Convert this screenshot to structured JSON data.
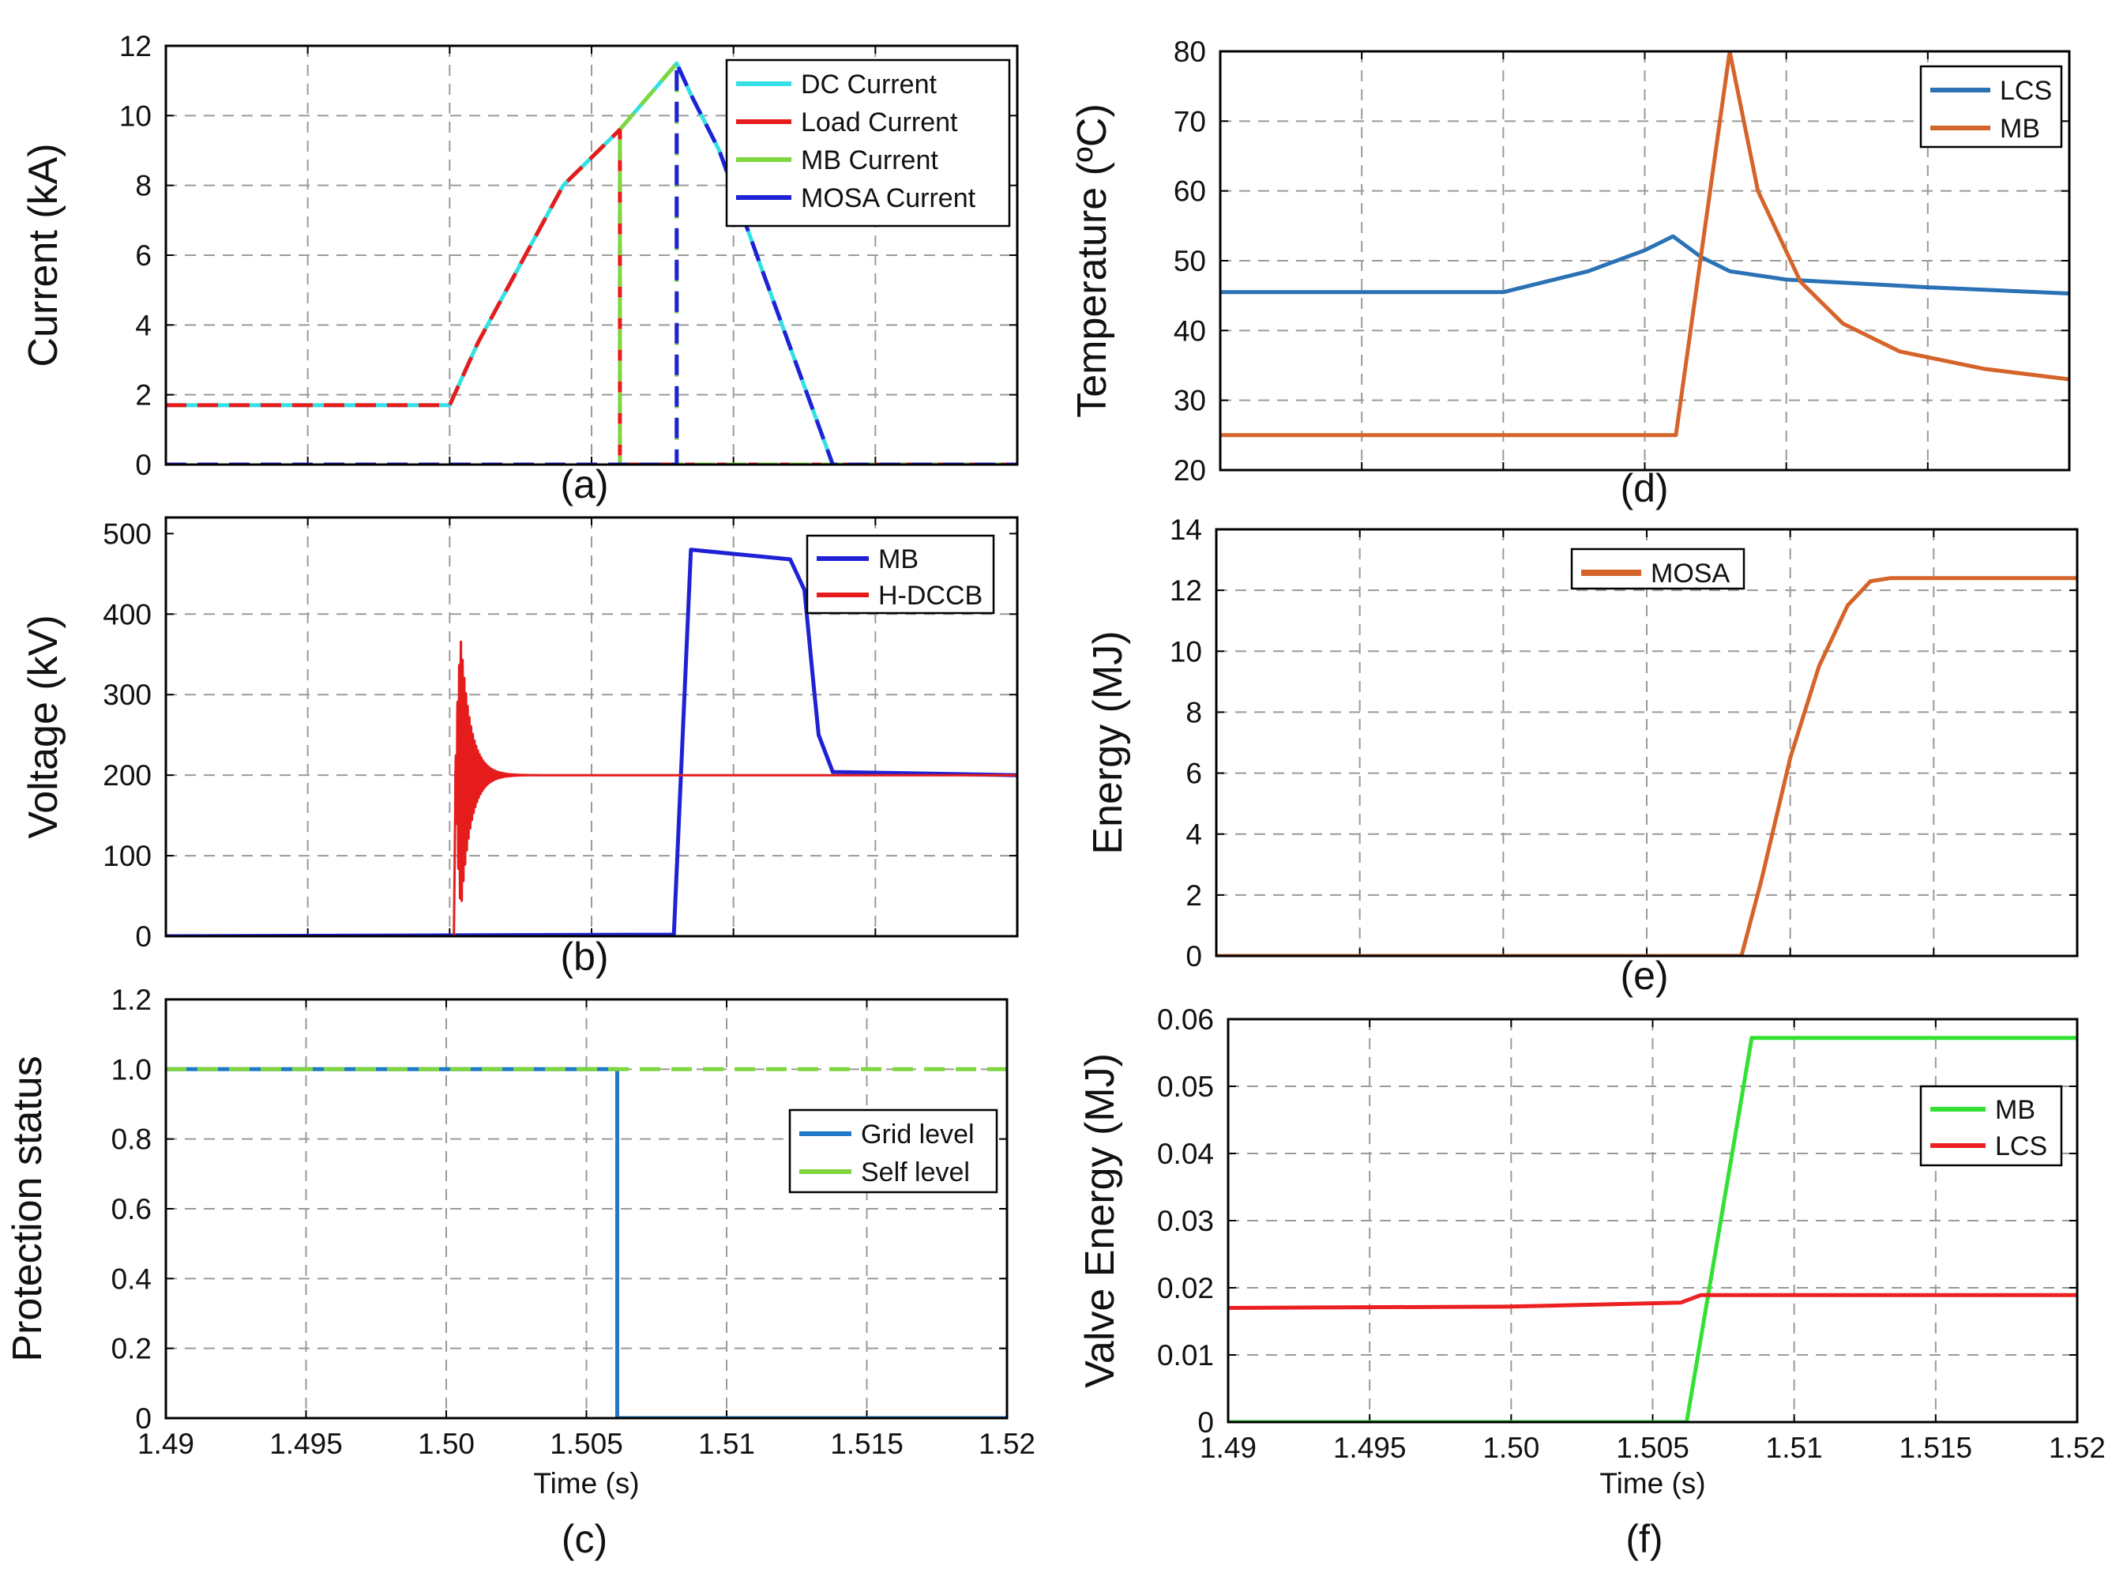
{
  "chart_data": [
    {
      "id": "a",
      "type": "line",
      "caption": "(a)",
      "ylabel": "Current (kA)",
      "xlabel": "",
      "xlim": [
        1.49,
        1.52
      ],
      "ylim": [
        0,
        12
      ],
      "xticks": [
        1.49,
        1.495,
        1.5,
        1.505,
        1.51,
        1.515,
        1.52
      ],
      "xtick_labels": [],
      "yticks": [
        0,
        2,
        4,
        6,
        8,
        10,
        12
      ],
      "ytick_labels": [
        "0",
        "2",
        "4",
        "6",
        "8",
        "10",
        "12"
      ],
      "grid": true,
      "legend_position": "top-right",
      "series": [
        {
          "name": "DC Current",
          "color": "#33e0e6",
          "style": "solid",
          "x": [
            1.49,
            1.5,
            1.501,
            1.504,
            1.506,
            1.508,
            1.5085,
            1.5095,
            1.511,
            1.5135,
            1.52
          ],
          "y": [
            1.7,
            1.7,
            3.5,
            8.0,
            9.6,
            11.5,
            10.6,
            9.0,
            5.6,
            0,
            0
          ]
        },
        {
          "name": "Load Current",
          "color": "#e61c1c",
          "style": "dashed",
          "x": [
            1.49,
            1.5,
            1.501,
            1.504,
            1.506,
            1.506,
            1.52
          ],
          "y": [
            1.7,
            1.7,
            3.5,
            8.0,
            9.6,
            0,
            0
          ]
        },
        {
          "name": "MB Current",
          "color": "#7fd63f",
          "style": "dashed",
          "x": [
            1.49,
            1.506,
            1.506,
            1.508,
            1.508,
            1.52
          ],
          "y": [
            0,
            0,
            9.6,
            11.5,
            0,
            0
          ]
        },
        {
          "name": "MOSA Current",
          "color": "#1f22d4",
          "style": "dashed",
          "x": [
            1.49,
            1.508,
            1.508,
            1.5085,
            1.5095,
            1.511,
            1.5135,
            1.52
          ],
          "y": [
            0,
            0,
            11.5,
            10.6,
            9.0,
            5.6,
            0,
            0
          ]
        }
      ]
    },
    {
      "id": "b",
      "type": "line",
      "caption": "(b)",
      "ylabel": "Voltage (kV)",
      "xlabel": "",
      "xlim": [
        1.49,
        1.52
      ],
      "ylim": [
        0,
        520
      ],
      "xticks": [
        1.49,
        1.495,
        1.5,
        1.505,
        1.51,
        1.515,
        1.52
      ],
      "xtick_labels": [],
      "yticks": [
        0,
        100,
        200,
        300,
        400,
        500
      ],
      "ytick_labels": [
        "0",
        "100",
        "200",
        "300",
        "400",
        "500"
      ],
      "grid": true,
      "legend_position": "top-right",
      "series": [
        {
          "name": "MB",
          "color": "#1f22d4",
          "style": "solid",
          "x": [
            1.49,
            1.5079,
            1.5085,
            1.512,
            1.5125,
            1.5128,
            1.513,
            1.5135,
            1.52
          ],
          "y": [
            0,
            2,
            480,
            468,
            430,
            320,
            250,
            204,
            200
          ]
        },
        {
          "name": "H-DCCB",
          "color": "#e61c1c",
          "style": "solid",
          "x": [
            1.49,
            1.5,
            1.501,
            1.506,
            1.52
          ],
          "y": [
            0,
            0,
            200,
            200,
            200
          ],
          "oscillation": {
            "start": 1.5002,
            "amplitude_kV": 300,
            "decay_ms": 0.35,
            "period_ms": 0.06,
            "center_kV": 200
          }
        }
      ]
    },
    {
      "id": "c",
      "type": "line",
      "caption": "(c)",
      "ylabel": "Protection status",
      "xlabel": "Time (s)",
      "xlim": [
        1.49,
        1.52
      ],
      "ylim": [
        0,
        1.2
      ],
      "xticks": [
        1.49,
        1.495,
        1.5,
        1.505,
        1.51,
        1.515,
        1.52
      ],
      "xtick_labels": [
        "1.49",
        "1.495",
        "1.50",
        "1.505",
        "1.51",
        "1.515",
        "1.52"
      ],
      "yticks": [
        0,
        0.2,
        0.4,
        0.6,
        0.8,
        1.0,
        1.2
      ],
      "ytick_labels": [
        "0",
        "0.2",
        "0.4",
        "0.6",
        "0.8",
        "1.0",
        "1.2"
      ],
      "grid": true,
      "legend_position": "right",
      "series": [
        {
          "name": "Grid level",
          "color": "#1f78c8",
          "style": "solid",
          "x": [
            1.49,
            1.5061,
            1.5061,
            1.52
          ],
          "y": [
            1,
            1,
            0,
            0
          ]
        },
        {
          "name": "Self level",
          "color": "#7fd63f",
          "style": "dashed",
          "x": [
            1.49,
            1.52
          ],
          "y": [
            1,
            1
          ]
        }
      ]
    },
    {
      "id": "d",
      "type": "line",
      "caption": "(d)",
      "ylabel": "Temperature (ºC)",
      "xlabel": "",
      "xlim": [
        1.49,
        1.52
      ],
      "ylim": [
        20,
        80
      ],
      "xticks": [
        1.49,
        1.495,
        1.5,
        1.505,
        1.51,
        1.515,
        1.52
      ],
      "xtick_labels": [],
      "yticks": [
        20,
        30,
        40,
        50,
        60,
        70,
        80
      ],
      "ytick_labels": [
        "20",
        "30",
        "40",
        "50",
        "60",
        "70",
        "80"
      ],
      "grid": true,
      "legend_position": "top-right",
      "series": [
        {
          "name": "LCS",
          "color": "#2a72b5",
          "style": "solid",
          "x": [
            1.49,
            1.5,
            1.501,
            1.503,
            1.505,
            1.506,
            1.507,
            1.508,
            1.51,
            1.515,
            1.52
          ],
          "y": [
            45.5,
            45.5,
            46.5,
            48.5,
            51.5,
            53.5,
            50.5,
            48.5,
            47.3,
            46.2,
            45.3
          ]
        },
        {
          "name": "MB",
          "color": "#d5642a",
          "style": "solid",
          "x": [
            1.49,
            1.5061,
            1.508,
            1.509,
            1.5105,
            1.512,
            1.514,
            1.517,
            1.52
          ],
          "y": [
            25,
            25,
            80,
            60,
            47,
            41,
            37,
            34.5,
            33
          ]
        }
      ]
    },
    {
      "id": "e",
      "type": "line",
      "caption": "(e)",
      "ylabel": "Energy (MJ)",
      "xlabel": "",
      "xlim": [
        1.49,
        1.52
      ],
      "ylim": [
        0,
        14
      ],
      "xticks": [
        1.49,
        1.495,
        1.5,
        1.505,
        1.51,
        1.515,
        1.52
      ],
      "xtick_labels": [],
      "yticks": [
        0,
        2,
        4,
        6,
        8,
        10,
        12,
        14
      ],
      "ytick_labels": [
        "0",
        "2",
        "4",
        "6",
        "8",
        "10",
        "12",
        "14"
      ],
      "grid": true,
      "legend_position": "top-center",
      "series": [
        {
          "name": "MOSA",
          "color": "#d5642a",
          "style": "solid",
          "x": [
            1.49,
            1.5083,
            1.509,
            1.51,
            1.511,
            1.512,
            1.5128,
            1.5135,
            1.52
          ],
          "y": [
            0,
            0,
            2.5,
            6.5,
            9.5,
            11.5,
            12.3,
            12.4,
            12.4
          ]
        }
      ]
    },
    {
      "id": "f",
      "type": "line",
      "caption": "(f)",
      "ylabel": "Valve Energy (MJ)",
      "xlabel": "Time (s)",
      "xlim": [
        1.49,
        1.52
      ],
      "ylim": [
        0,
        0.06
      ],
      "xticks": [
        1.49,
        1.495,
        1.5,
        1.505,
        1.51,
        1.515,
        1.52
      ],
      "xtick_labels": [
        "1.49",
        "1.495",
        "1.50",
        "1.505",
        "1.51",
        "1.515",
        "1.52"
      ],
      "yticks": [
        0,
        0.01,
        0.02,
        0.03,
        0.04,
        0.05,
        0.06
      ],
      "ytick_labels": [
        "0",
        "0.01",
        "0.02",
        "0.03",
        "0.04",
        "0.05",
        "0.06"
      ],
      "grid": true,
      "legend_position": "right",
      "series": [
        {
          "name": "MB",
          "color": "#33e133",
          "style": "solid",
          "x": [
            1.49,
            1.5062,
            1.5085,
            1.52
          ],
          "y": [
            0,
            0,
            0.0572,
            0.0572
          ]
        },
        {
          "name": "LCS",
          "color": "#ec2020",
          "style": "solid",
          "x": [
            1.49,
            1.5,
            1.506,
            1.5067,
            1.52
          ],
          "y": [
            0.017,
            0.0172,
            0.0178,
            0.0189,
            0.0189
          ]
        }
      ]
    }
  ]
}
